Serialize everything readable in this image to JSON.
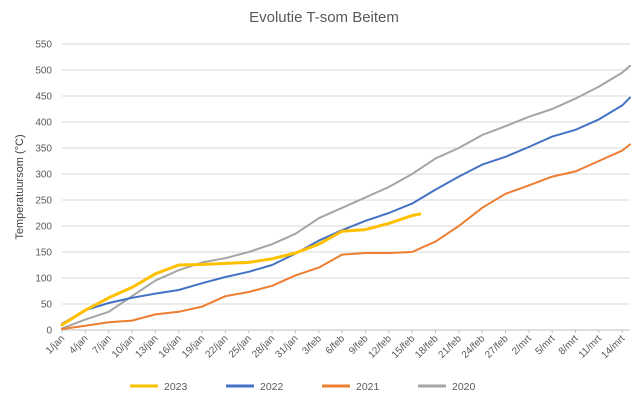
{
  "chart_data": {
    "type": "line",
    "title": "Evolutie T-som Beitem",
    "xlabel": "",
    "ylabel": "Temperatuursom (°C)",
    "ylim": [
      0,
      550
    ],
    "yticks": [
      0,
      50,
      100,
      150,
      200,
      250,
      300,
      350,
      400,
      450,
      500,
      550
    ],
    "x_range": [
      "1/jan",
      "15/mrt"
    ],
    "x_tick_labels": [
      "1/jan",
      "4/jan",
      "7/jan",
      "10/jan",
      "13/jan",
      "16/jan",
      "19/jan",
      "22/jan",
      "25/jan",
      "28/jan",
      "31/jan",
      "3/feb",
      "6/feb",
      "9/feb",
      "12/feb",
      "15/feb",
      "18/feb",
      "21/feb",
      "24/feb",
      "27/feb",
      "2/mrt",
      "5/mrt",
      "8/mrt",
      "11/mrt",
      "14/mrt"
    ],
    "x_tick_every_days": 3,
    "grid": "horizontal",
    "legend_position": "bottom",
    "series": [
      {
        "name": "2023",
        "color": "#FFC000",
        "points": [
          [
            "1/jan",
            10
          ],
          [
            "4/jan",
            38
          ],
          [
            "7/jan",
            62
          ],
          [
            "10/jan",
            82
          ],
          [
            "13/jan",
            108
          ],
          [
            "16/jan",
            125
          ],
          [
            "19/jan",
            126
          ],
          [
            "22/jan",
            128
          ],
          [
            "25/jan",
            130
          ],
          [
            "28/jan",
            137
          ],
          [
            "31/jan",
            148
          ],
          [
            "3/feb",
            165
          ],
          [
            "6/feb",
            190
          ],
          [
            "9/feb",
            193
          ],
          [
            "12/feb",
            205
          ],
          [
            "15/feb",
            220
          ],
          [
            "16/feb",
            223
          ]
        ]
      },
      {
        "name": "2022",
        "color": "#4472C4",
        "points": [
          [
            "1/jan",
            12
          ],
          [
            "4/jan",
            38
          ],
          [
            "7/jan",
            52
          ],
          [
            "10/jan",
            62
          ],
          [
            "13/jan",
            70
          ],
          [
            "16/jan",
            77
          ],
          [
            "19/jan",
            90
          ],
          [
            "22/jan",
            102
          ],
          [
            "25/jan",
            112
          ],
          [
            "28/jan",
            125
          ],
          [
            "31/jan",
            147
          ],
          [
            "3/feb",
            172
          ],
          [
            "6/feb",
            192
          ],
          [
            "9/feb",
            210
          ],
          [
            "12/feb",
            225
          ],
          [
            "15/feb",
            243
          ],
          [
            "18/feb",
            270
          ],
          [
            "21/feb",
            295
          ],
          [
            "24/feb",
            318
          ],
          [
            "27/feb",
            333
          ],
          [
            "2/mrt",
            352
          ],
          [
            "5/mrt",
            372
          ],
          [
            "8/mrt",
            385
          ],
          [
            "11/mrt",
            405
          ],
          [
            "14/mrt",
            432
          ],
          [
            "15/mrt",
            447
          ]
        ]
      },
      {
        "name": "2021",
        "color": "#ED7D31",
        "points": [
          [
            "1/jan",
            2
          ],
          [
            "4/jan",
            8
          ],
          [
            "7/jan",
            15
          ],
          [
            "10/jan",
            18
          ],
          [
            "13/jan",
            30
          ],
          [
            "16/jan",
            35
          ],
          [
            "19/jan",
            45
          ],
          [
            "22/jan",
            65
          ],
          [
            "25/jan",
            73
          ],
          [
            "28/jan",
            85
          ],
          [
            "31/jan",
            105
          ],
          [
            "3/feb",
            120
          ],
          [
            "6/feb",
            145
          ],
          [
            "9/feb",
            148
          ],
          [
            "12/feb",
            148
          ],
          [
            "15/feb",
            150
          ],
          [
            "18/feb",
            170
          ],
          [
            "21/feb",
            200
          ],
          [
            "24/feb",
            235
          ],
          [
            "27/feb",
            262
          ],
          [
            "2/mrt",
            278
          ],
          [
            "5/mrt",
            295
          ],
          [
            "8/mrt",
            305
          ],
          [
            "11/mrt",
            325
          ],
          [
            "14/mrt",
            345
          ],
          [
            "15/mrt",
            357
          ]
        ]
      },
      {
        "name": "2020",
        "color": "#A5A5A5",
        "points": [
          [
            "1/jan",
            3
          ],
          [
            "4/jan",
            20
          ],
          [
            "7/jan",
            35
          ],
          [
            "10/jan",
            65
          ],
          [
            "13/jan",
            95
          ],
          [
            "16/jan",
            115
          ],
          [
            "19/jan",
            130
          ],
          [
            "22/jan",
            138
          ],
          [
            "25/jan",
            150
          ],
          [
            "28/jan",
            165
          ],
          [
            "31/jan",
            185
          ],
          [
            "3/feb",
            215
          ],
          [
            "6/feb",
            235
          ],
          [
            "9/feb",
            255
          ],
          [
            "12/feb",
            275
          ],
          [
            "15/feb",
            300
          ],
          [
            "18/feb",
            330
          ],
          [
            "21/feb",
            350
          ],
          [
            "24/feb",
            375
          ],
          [
            "27/feb",
            392
          ],
          [
            "2/mrt",
            410
          ],
          [
            "5/mrt",
            425
          ],
          [
            "8/mrt",
            445
          ],
          [
            "11/mrt",
            468
          ],
          [
            "14/mrt",
            495
          ],
          [
            "15/mrt",
            508
          ]
        ]
      }
    ]
  }
}
